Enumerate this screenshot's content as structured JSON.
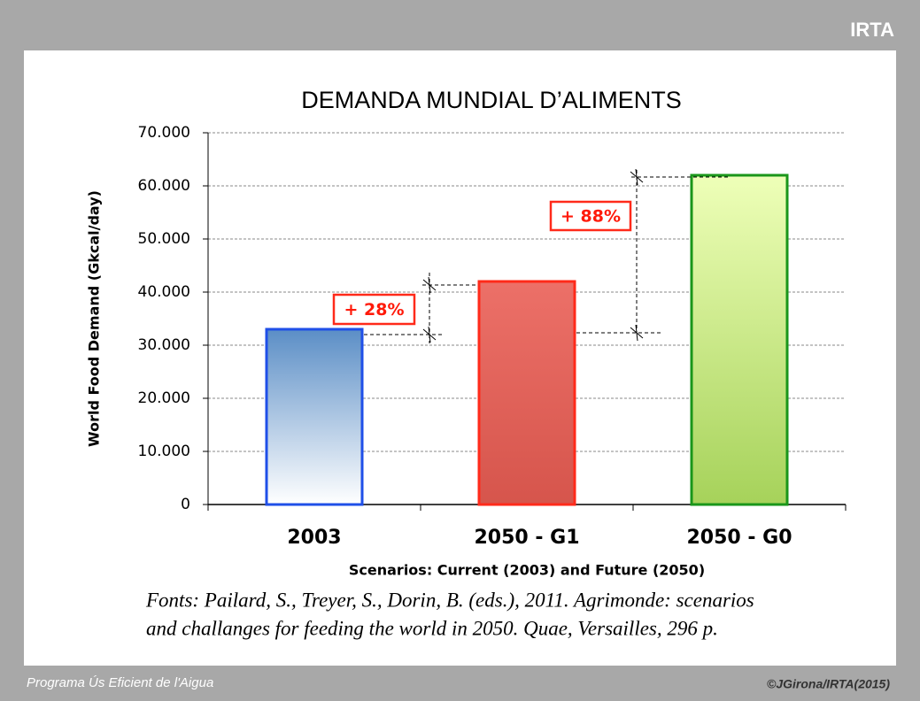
{
  "logo": "IRTA",
  "footer": {
    "left": "Programa Ús Eficient de l'Aigua",
    "right": "©JGirona/IRTA(2015)"
  },
  "source": [
    "Fonts: Pailard, S., Treyer, S., Dorin, B. (eds.), 2011. Agrimonde: scenarios",
    "and challanges for feeding the world in 2050. Quae, Versailles, 296 p."
  ],
  "chart_data": {
    "type": "bar",
    "title": "DEMANDA MUNDIAL D’ALIMENTS",
    "x_label": "Scenarios: Current (2003) and Future (2050)",
    "y_label": "World Food Demand (Gkcal/day)",
    "categories": [
      "2003",
      "2050 - G1",
      "2050 - G0"
    ],
    "values": [
      33000,
      42000,
      62000
    ],
    "colors": [
      "#1f4fe8",
      "#ff2a1a",
      "#1a961a"
    ],
    "gradients": [
      [
        "#5b8ec6",
        "#ffffff"
      ],
      [
        "#ec7068",
        "#d6554c"
      ],
      [
        "#eeffb8",
        "#a6d25a"
      ]
    ],
    "annotations": [
      "+ 28%",
      "+ 88%"
    ],
    "ylim": [
      0,
      70000
    ],
    "yticks": [
      0,
      {
        "value": 10000,
        "label": "10.000"
      },
      {
        "value": 20000,
        "label": "20.000"
      },
      {
        "value": 30000,
        "label": "30.000"
      },
      {
        "value": 40000,
        "label": "40.000"
      },
      {
        "value": 50000,
        "label": "50.000"
      },
      {
        "value": 60000,
        "label": "60.000"
      },
      {
        "value": 70000,
        "label": "70.000"
      }
    ],
    "grid": true
  }
}
